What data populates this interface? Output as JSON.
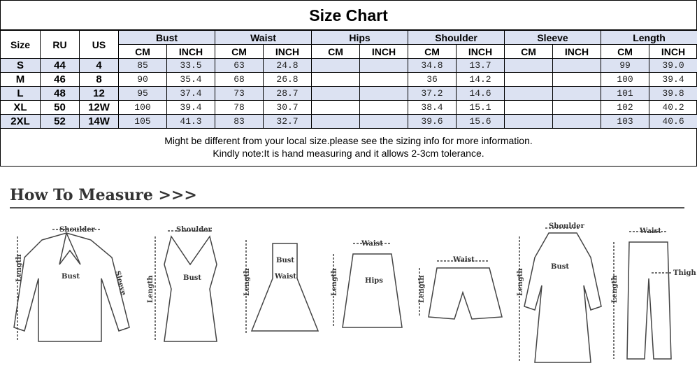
{
  "title": "Size Chart",
  "headers": {
    "size": "Size",
    "ru": "RU",
    "us": "US",
    "groups": [
      "Bust",
      "Waist",
      "Hips",
      "Shoulder",
      "Sleeve",
      "Length"
    ],
    "cm": "CM",
    "inch": "INCH"
  },
  "rows": [
    {
      "size": "S",
      "ru": "44",
      "us": "4",
      "vals": [
        "85",
        "33.5",
        "63",
        "24.8",
        "",
        "",
        "34.8",
        "13.7",
        "",
        "",
        "99",
        "39.0"
      ]
    },
    {
      "size": "M",
      "ru": "46",
      "us": "8",
      "vals": [
        "90",
        "35.4",
        "68",
        "26.8",
        "",
        "",
        "36",
        "14.2",
        "",
        "",
        "100",
        "39.4"
      ]
    },
    {
      "size": "L",
      "ru": "48",
      "us": "12",
      "vals": [
        "95",
        "37.4",
        "73",
        "28.7",
        "",
        "",
        "37.2",
        "14.6",
        "",
        "",
        "101",
        "39.8"
      ]
    },
    {
      "size": "XL",
      "ru": "50",
      "us": "12W",
      "vals": [
        "100",
        "39.4",
        "78",
        "30.7",
        "",
        "",
        "38.4",
        "15.1",
        "",
        "",
        "102",
        "40.2"
      ]
    },
    {
      "size": "2XL",
      "ru": "52",
      "us": "14W",
      "vals": [
        "105",
        "41.3",
        "83",
        "32.7",
        "",
        "",
        "39.6",
        "15.6",
        "",
        "",
        "103",
        "40.6"
      ]
    }
  ],
  "note": [
    "Might be different from your local size.please see the sizing info for more information.",
    "Kindly note:It is hand measuring and it allows 2-3cm tolerance."
  ],
  "how_to_measure": "How To Measure >>>",
  "labels": {
    "shoulder": "Shoulder",
    "bust": "Bust",
    "sleeve": "Sleeve",
    "length": "Length",
    "waist": "Waist",
    "hips": "Hips",
    "thigh": "Thigh"
  },
  "colors": {
    "header_blue": "#dce2f2"
  }
}
